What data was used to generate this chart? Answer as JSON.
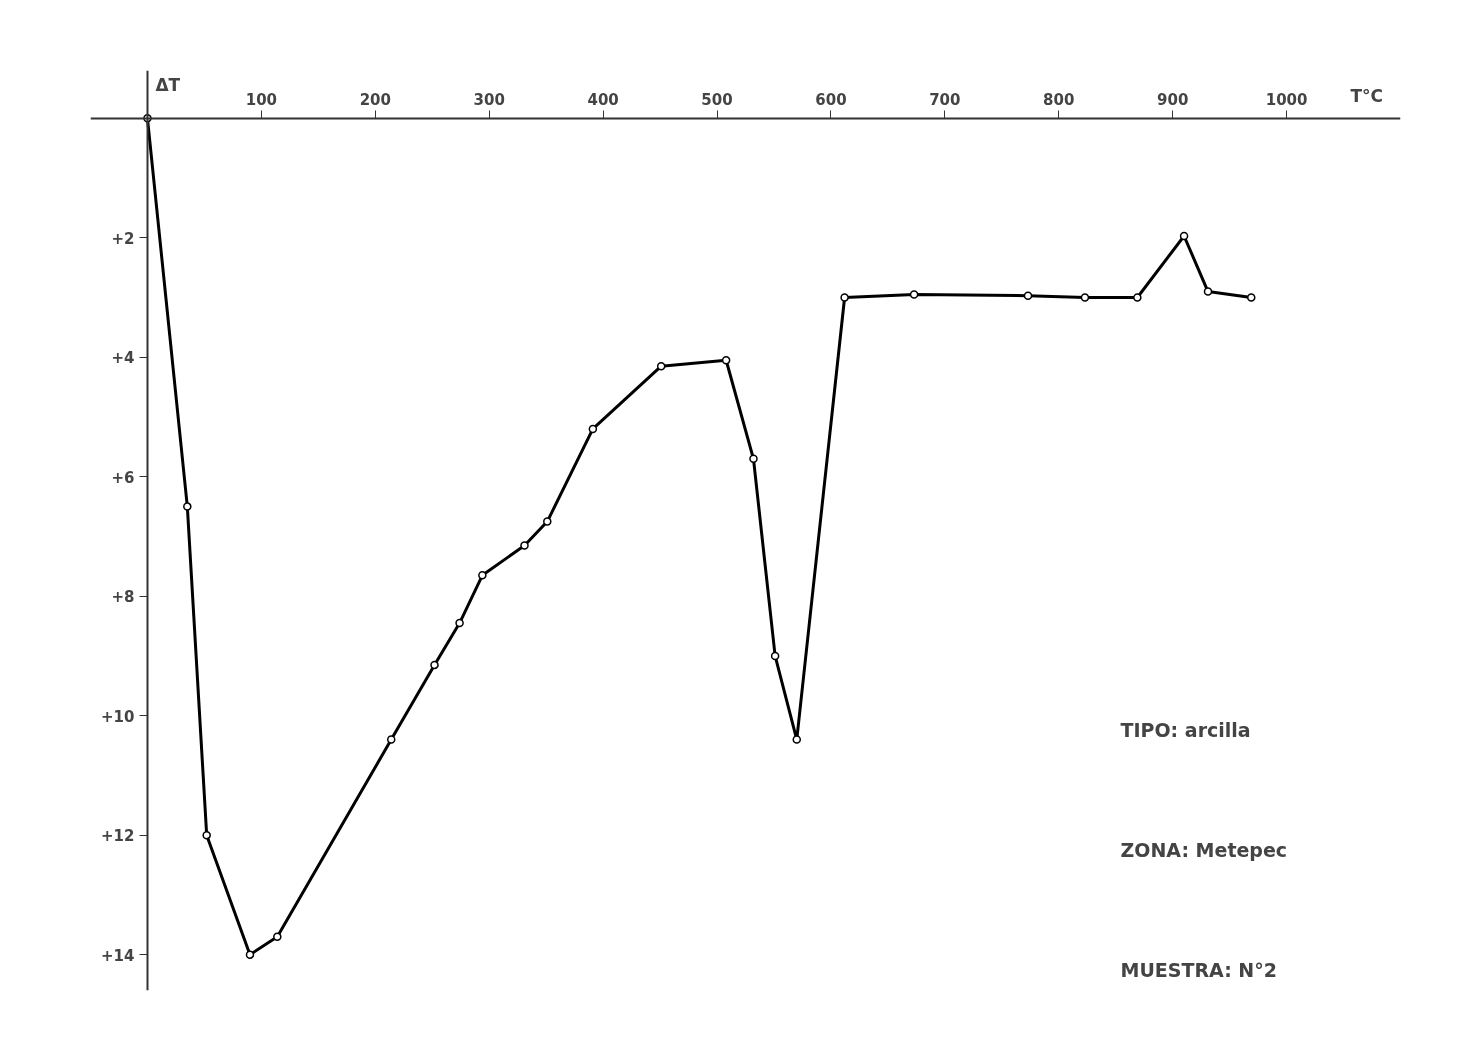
{
  "chart_data": {
    "type": "line",
    "xlabel": "T°C",
    "ylabel": "ΔT",
    "x": [
      0,
      35,
      52,
      90,
      114,
      214,
      252,
      274,
      294,
      331,
      351,
      391,
      451,
      508,
      532,
      551,
      570,
      612,
      673,
      773,
      823,
      869,
      910,
      931,
      969
    ],
    "series": [
      {
        "color": "#000000",
        "values": [
          0,
          6.5,
          12.0,
          14.0,
          13.7,
          10.4,
          9.15,
          8.45,
          7.65,
          7.15,
          6.75,
          5.2,
          4.15,
          4.05,
          5.7,
          9.0,
          10.4,
          3.0,
          2.95,
          2.97,
          3.0,
          3.0,
          1.97,
          2.9,
          3.0
        ]
      }
    ],
    "xlim": [
      -50,
      1100
    ],
    "ylim": [
      14.6,
      -0.8
    ],
    "xticks": [
      100,
      200,
      300,
      400,
      500,
      600,
      700,
      800,
      900,
      1000
    ],
    "yticks": [
      {
        "value": 2,
        "label": "+2"
      },
      {
        "value": 4,
        "label": "+4"
      },
      {
        "value": 6,
        "label": "+6"
      },
      {
        "value": 8,
        "label": "+8"
      },
      {
        "value": 10,
        "label": "+10"
      },
      {
        "value": 12,
        "label": "+12"
      },
      {
        "value": 14,
        "label": "+14"
      }
    ],
    "annotations": [
      "TIPO: arcilla",
      "ZONA: Metepec",
      "MUESTRA: N°2"
    ],
    "marker": "circle",
    "line_style": "solid",
    "grid": false
  }
}
